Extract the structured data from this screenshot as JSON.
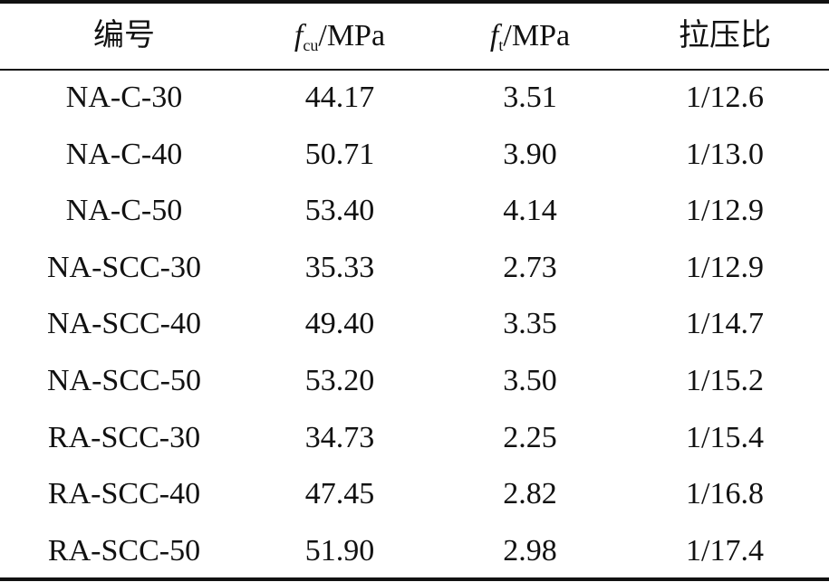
{
  "table": {
    "header": [
      {
        "text": "编号"
      },
      {
        "symbol": "f",
        "subscript": "cu",
        "unit": "/MPa"
      },
      {
        "symbol": "f",
        "subscript": "t",
        "unit": "/MPa"
      },
      {
        "text": "拉压比"
      }
    ],
    "rows": [
      [
        "NA-C-30",
        "44.17",
        "3.51",
        "1/12.6"
      ],
      [
        "NA-C-40",
        "50.71",
        "3.90",
        "1/13.0"
      ],
      [
        "NA-C-50",
        "53.40",
        "4.14",
        "1/12.9"
      ],
      [
        "NA-SCC-30",
        "35.33",
        "2.73",
        "1/12.9"
      ],
      [
        "NA-SCC-40",
        "49.40",
        "3.35",
        "1/14.7"
      ],
      [
        "NA-SCC-50",
        "53.20",
        "3.50",
        "1/15.2"
      ],
      [
        "RA-SCC-30",
        "34.73",
        "2.25",
        "1/15.4"
      ],
      [
        "RA-SCC-40",
        "47.45",
        "2.82",
        "1/16.8"
      ],
      [
        "RA-SCC-50",
        "51.90",
        "2.98",
        "1/17.4"
      ]
    ]
  }
}
